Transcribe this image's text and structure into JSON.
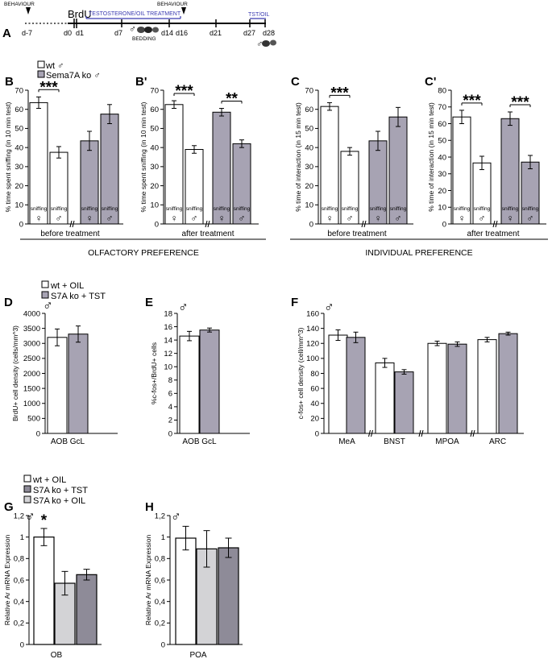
{
  "timeline": {
    "days": [
      "d-7",
      "d0",
      "d1",
      "d7",
      "d14",
      "d16",
      "d21",
      "d27",
      "d28"
    ],
    "behaviour_left": "BEHAVIOUR",
    "behaviour_right": "BEHAVIOUR",
    "brdu": "BrdU",
    "treatment": "TESTOSTERONE/OIL TREATMENT",
    "tst_oil": "TST/OIL",
    "bedding": "BEDDING"
  },
  "labels": {
    "male": "♂",
    "female": "♀",
    "sniffing": "sniffing",
    "olfactory": "OLFACTORY PREFERENCE",
    "individual": "INDIVIDUAL PREFERENCE"
  },
  "legends": {
    "top": [
      "wt ♂",
      "Sema7A ko ♂"
    ],
    "mid": [
      "wt + OIL",
      "S7A ko + TST"
    ],
    "bottom": [
      "wt + OIL",
      "S7A ko + TST",
      "S7A ko + OIL"
    ]
  },
  "colors": {
    "white": "#ffffff",
    "grey": "#a7a3b3",
    "light": "#d3d3d6",
    "dark": "#8e8b98"
  },
  "chart_data": [
    {
      "id": "B",
      "panel": "B",
      "type": "bar",
      "ylabel": "% time spent sniffing (in 10 min test)",
      "xlabel": "before treatment",
      "ylim": [
        0,
        70
      ],
      "yticks": [
        0,
        10,
        20,
        30,
        40,
        50,
        60,
        70
      ],
      "categories": [
        "wt ♀",
        "wt ♂",
        "Sema7A ko ♀",
        "Sema7A ko ♂"
      ],
      "values": [
        63.5,
        37.5,
        43.5,
        57.5
      ],
      "errors": [
        3,
        3,
        5,
        5
      ],
      "fills": [
        "white",
        "white",
        "grey",
        "grey"
      ],
      "bar_text": [
        "sniffing",
        "sniffing",
        "sniffing",
        "sniffing"
      ],
      "sex": [
        "♀",
        "♂",
        "♀",
        "♂"
      ],
      "significance": [
        {
          "bars": [
            0,
            1
          ],
          "label": "***"
        }
      ]
    },
    {
      "id": "B2",
      "panel": "B'",
      "type": "bar",
      "ylabel": "% time spent sniffing (in 10 min test)",
      "xlabel": "after treatment",
      "ylim": [
        0,
        70
      ],
      "yticks": [
        0,
        10,
        20,
        30,
        40,
        50,
        60,
        70
      ],
      "categories": [
        "wt ♀",
        "wt ♂",
        "Sema7A ko ♀",
        "Sema7A ko ♂"
      ],
      "values": [
        62.5,
        39,
        58.5,
        42
      ],
      "errors": [
        2,
        2,
        2,
        2
      ],
      "fills": [
        "white",
        "white",
        "grey",
        "grey"
      ],
      "bar_text": [
        "sniffing",
        "sniffing",
        "sniffing",
        "sniffing"
      ],
      "sex": [
        "♀",
        "♂",
        "♀",
        "♂"
      ],
      "significance": [
        {
          "bars": [
            0,
            1
          ],
          "label": "***"
        },
        {
          "bars": [
            2,
            3
          ],
          "label": "**"
        }
      ]
    },
    {
      "id": "C",
      "panel": "C",
      "type": "bar",
      "ylabel": "% time of interaction (in 15 min test)",
      "xlabel": "before treatment",
      "ylim": [
        0,
        70
      ],
      "yticks": [
        0,
        10,
        20,
        30,
        40,
        50,
        60,
        70
      ],
      "categories": [
        "wt ♀",
        "wt ♂",
        "Sema7A ko ♀",
        "Sema7A ko ♂"
      ],
      "values": [
        61.5,
        38,
        43.5,
        56
      ],
      "errors": [
        2,
        2,
        5,
        5
      ],
      "fills": [
        "white",
        "white",
        "grey",
        "grey"
      ],
      "bar_text": [
        "sniffing",
        "sniffing",
        "sniffing",
        "sniffing"
      ],
      "sex": [
        "♀",
        "♂",
        "♀",
        "♂"
      ],
      "significance": [
        {
          "bars": [
            0,
            1
          ],
          "label": "***"
        }
      ]
    },
    {
      "id": "C2",
      "panel": "C'",
      "type": "bar",
      "ylabel": "% time of interaction (in 15 min test)",
      "xlabel": "after treatment",
      "ylim": [
        0,
        80
      ],
      "yticks": [
        0,
        10,
        20,
        30,
        40,
        50,
        60,
        70,
        80
      ],
      "categories": [
        "wt ♀",
        "wt ♂",
        "Sema7A ko ♀",
        "Sema7A ko ♂"
      ],
      "values": [
        64,
        36.5,
        63,
        37
      ],
      "errors": [
        4,
        4,
        4,
        4
      ],
      "fills": [
        "white",
        "white",
        "grey",
        "grey"
      ],
      "bar_text": [
        "sniffing",
        "sniffing",
        "sniffing",
        "sniffing"
      ],
      "sex": [
        "♀",
        "♂",
        "♀",
        "♂"
      ],
      "significance": [
        {
          "bars": [
            0,
            1
          ],
          "label": "***"
        },
        {
          "bars": [
            2,
            3
          ],
          "label": "***"
        }
      ]
    },
    {
      "id": "D",
      "panel": "D",
      "type": "bar",
      "ylabel": "BrdU+ cell density (cells/mm^3)",
      "ylim": [
        0,
        4000
      ],
      "yticks": [
        0,
        500,
        1000,
        1500,
        2000,
        2500,
        3000,
        3500,
        4000
      ],
      "groups": [
        "AOB GcL"
      ],
      "series": [
        {
          "name": "wt + OIL",
          "values": [
            3200
          ],
          "errors": [
            280
          ]
        },
        {
          "name": "S7A ko + TST",
          "values": [
            3310
          ],
          "errors": [
            270
          ]
        }
      ],
      "fills": [
        "white",
        "grey"
      ]
    },
    {
      "id": "E",
      "panel": "E",
      "type": "bar",
      "ylabel": "%c-fos+/BrdU+ cells",
      "ylim": [
        0,
        18
      ],
      "yticks": [
        0,
        2,
        4,
        6,
        8,
        10,
        12,
        14,
        16,
        18
      ],
      "groups": [
        "AOB GcL"
      ],
      "series": [
        {
          "name": "wt + OIL",
          "values": [
            14.6
          ],
          "errors": [
            0.7
          ]
        },
        {
          "name": "S7A ko + TST",
          "values": [
            15.5
          ],
          "errors": [
            0.3
          ]
        }
      ],
      "fills": [
        "white",
        "grey"
      ]
    },
    {
      "id": "F",
      "panel": "F",
      "type": "bar",
      "ylabel": "c-fos+ cell density (cell/mm^3)",
      "ylim": [
        0,
        160
      ],
      "yticks": [
        0,
        20,
        40,
        60,
        80,
        100,
        120,
        140,
        160
      ],
      "groups": [
        "MeA",
        "BNST",
        "MPOA",
        "ARC"
      ],
      "series": [
        {
          "name": "wt + OIL",
          "values": [
            131,
            94,
            120,
            125
          ],
          "errors": [
            7,
            6,
            3,
            3
          ]
        },
        {
          "name": "S7A ko + TST",
          "values": [
            128,
            82,
            119,
            133
          ],
          "errors": [
            7,
            3,
            3,
            2
          ]
        }
      ],
      "fills": [
        "white",
        "grey"
      ]
    },
    {
      "id": "G",
      "panel": "G",
      "type": "bar",
      "ylabel": "Relative Ar mRNA Expression",
      "xlabel": "OB",
      "ylim": [
        0,
        1.2
      ],
      "yticks": [
        0,
        0.2,
        0.4,
        0.6,
        0.8,
        1,
        1.2
      ],
      "ytick_labels": [
        "0",
        "0,2",
        "0,4",
        "0,6",
        "0,8",
        "1",
        "1,2"
      ],
      "categories": [
        "wt + OIL",
        "S7A ko + OIL",
        "S7A ko + TST"
      ],
      "values": [
        1.0,
        0.57,
        0.65
      ],
      "errors": [
        0.08,
        0.11,
        0.05
      ],
      "fills": [
        "white",
        "light",
        "dark"
      ],
      "star": {
        "bar": 0,
        "label": "*"
      }
    },
    {
      "id": "H",
      "panel": "H",
      "type": "bar",
      "ylabel": "Relative Ar mRNA Expression",
      "xlabel": "POA",
      "ylim": [
        0,
        1.2
      ],
      "yticks": [
        0,
        0.2,
        0.4,
        0.6,
        0.8,
        1,
        1.2
      ],
      "ytick_labels": [
        "0",
        "0,2",
        "0,4",
        "0,6",
        "0,8",
        "1",
        "1,2"
      ],
      "categories": [
        "wt + OIL",
        "S7A ko + OIL",
        "S7A ko + TST"
      ],
      "values": [
        0.99,
        0.89,
        0.9
      ],
      "errors": [
        0.11,
        0.17,
        0.09
      ],
      "fills": [
        "white",
        "light",
        "dark"
      ]
    }
  ]
}
